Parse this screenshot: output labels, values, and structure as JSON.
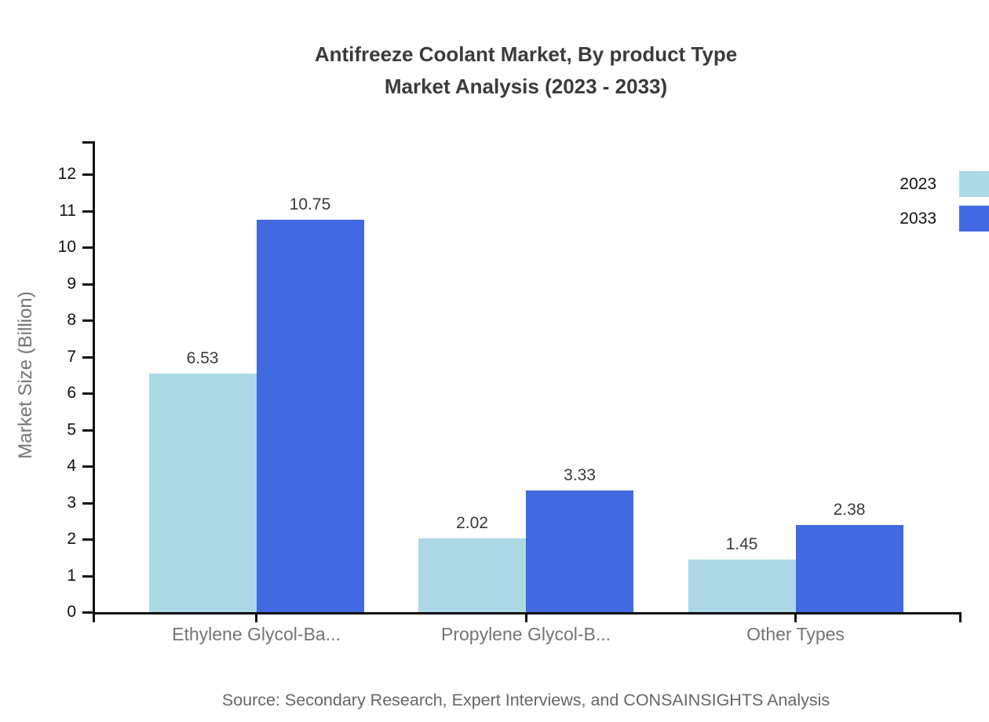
{
  "title": {
    "line1": "Antifreeze Coolant Market, By product Type",
    "line2": "Market Analysis (2023 - 2033)"
  },
  "source": "Source: Secondary Research, Expert Interviews, and CONSAINSIGHTS Analysis",
  "chart_data": {
    "type": "bar",
    "title": "Antifreeze Coolant Market, By product Type — Market Analysis (2023 - 2033)",
    "categories": [
      "Ethylene Glycol-Ba...",
      "Propylene Glycol-B...",
      "Other Types"
    ],
    "series": [
      {
        "name": "2023",
        "color": "#ADD8E6",
        "values": [
          6.53,
          2.02,
          1.45
        ]
      },
      {
        "name": "2033",
        "color": "#4169E1",
        "values": [
          10.75,
          3.33,
          2.38
        ]
      }
    ],
    "xlabel": "",
    "ylabel": "Market Size (Billion)",
    "ylim": [
      0,
      12.9
    ],
    "yticks": [
      0,
      1,
      2,
      3,
      4,
      5,
      6,
      7,
      8,
      9,
      10,
      11,
      12
    ],
    "grid": false,
    "legend_position": "top-right",
    "value_labels": true
  },
  "colors": {
    "series_2023": "#ADD8E6",
    "series_2033": "#4169E1",
    "title_text": "#3B3B3B",
    "axis_text": "#111111",
    "category_text": "#757575",
    "source_text": "#666666",
    "background": "#FFFFFF"
  }
}
